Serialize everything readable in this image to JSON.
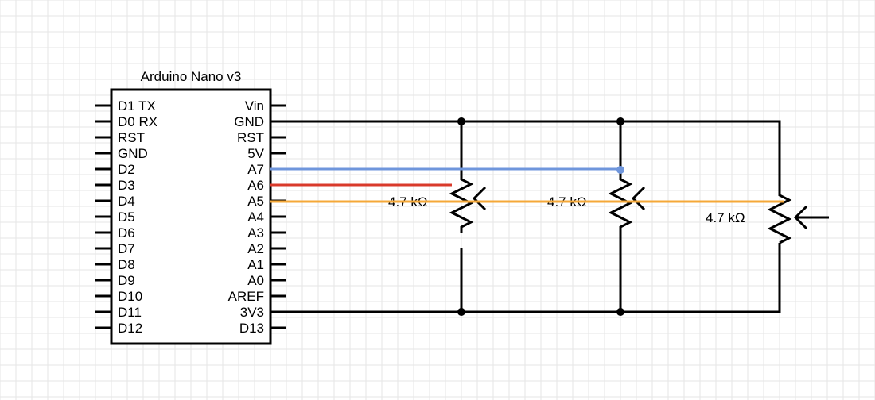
{
  "board": {
    "title": "Arduino Nano v3",
    "left_pins": [
      "D1 TX",
      "D0 RX",
      "RST",
      "GND",
      "D2",
      "D3",
      "D4",
      "D5",
      "D6",
      "D7",
      "D8",
      "D9",
      "D10",
      "D11",
      "D12"
    ],
    "right_pins": [
      "Vin",
      "GND",
      "RST",
      "5V",
      "A7",
      "A6",
      "A5",
      "A4",
      "A3",
      "A2",
      "A1",
      "A0",
      "AREF",
      "3V3",
      "D13"
    ]
  },
  "potentiometers": [
    {
      "label": "4.7 kΩ"
    },
    {
      "label": "4.7 kΩ"
    },
    {
      "label": "4.7 kΩ"
    }
  ],
  "wire_colors": {
    "black": "#000000",
    "blue": "#6f96dc",
    "red": "#d93a2b",
    "orange": "#f5a838"
  },
  "grid_color": "#e6e6e6"
}
